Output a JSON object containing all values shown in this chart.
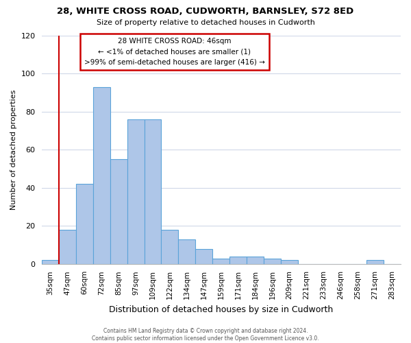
{
  "title": "28, WHITE CROSS ROAD, CUDWORTH, BARNSLEY, S72 8ED",
  "subtitle": "Size of property relative to detached houses in Cudworth",
  "xlabel": "Distribution of detached houses by size in Cudworth",
  "ylabel": "Number of detached properties",
  "categories": [
    "35sqm",
    "47sqm",
    "60sqm",
    "72sqm",
    "85sqm",
    "97sqm",
    "109sqm",
    "122sqm",
    "134sqm",
    "147sqm",
    "159sqm",
    "171sqm",
    "184sqm",
    "196sqm",
    "209sqm",
    "221sqm",
    "233sqm",
    "246sqm",
    "258sqm",
    "271sqm",
    "283sqm"
  ],
  "values": [
    2,
    18,
    42,
    93,
    55,
    76,
    76,
    18,
    13,
    8,
    3,
    4,
    4,
    3,
    2,
    0,
    0,
    0,
    0,
    2,
    0
  ],
  "bar_color": "#aec6e8",
  "bar_edge_color": "#5ba3d9",
  "highlight_line_color": "#cc0000",
  "ylim": [
    0,
    120
  ],
  "yticks": [
    0,
    20,
    40,
    60,
    80,
    100,
    120
  ],
  "annotation_title": "28 WHITE CROSS ROAD: 46sqm",
  "annotation_line1": "← <1% of detached houses are smaller (1)",
  "annotation_line2": ">99% of semi-detached houses are larger (416) →",
  "annotation_box_color": "#ffffff",
  "annotation_box_edge_color": "#cc0000",
  "footer_line1": "Contains HM Land Registry data © Crown copyright and database right 2024.",
  "footer_line2": "Contains public sector information licensed under the Open Government Licence v3.0.",
  "background_color": "#ffffff",
  "grid_color": "#d0d8e8"
}
